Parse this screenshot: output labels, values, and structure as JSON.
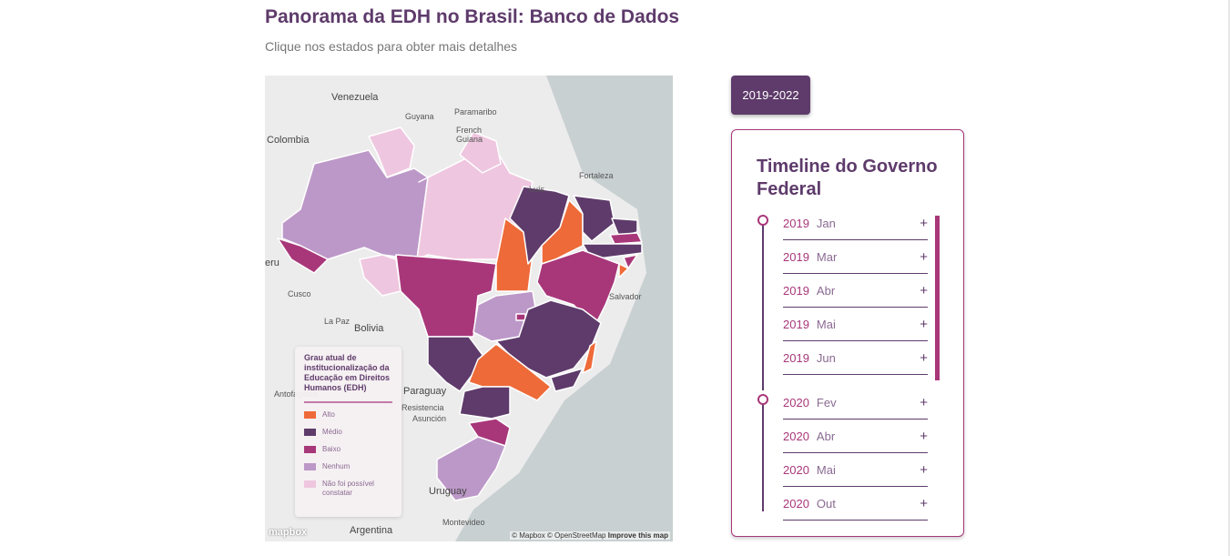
{
  "header": {
    "title": "Panorama da EDH no Brasil: Banco de Dados",
    "subtitle": "Clique nos estados para obter mais detalhes"
  },
  "map": {
    "labels": [
      "Venezuela",
      "Guyana",
      "Paramaribo",
      "French Guiana",
      "Colombia",
      "eru",
      "Bolivia",
      "La Paz",
      "Cusco",
      "Paraguay",
      "Resistencia",
      "Uruguay",
      "Montevideo",
      "Argentina",
      "Salvador",
      "Fortaleza",
      "Luís",
      "Asunción",
      "Antofagasta"
    ],
    "legend": {
      "title": "Grau atual de institucionalização da Educação em Direitos Humanos (EDH)",
      "items": [
        {
          "label": "Alto",
          "color": "#ee6a38"
        },
        {
          "label": "Médio",
          "color": "#5e3b6b"
        },
        {
          "label": "Baixo",
          "color": "#a8377a"
        },
        {
          "label": "Nenhum",
          "color": "#bc98c8"
        },
        {
          "label": "Não foi possível constatar",
          "color": "#efc6df"
        }
      ]
    },
    "attribution": "© Mapbox © OpenStreetMap",
    "improve": "Improve this map",
    "logo": "mapbox"
  },
  "period_button": "2019-2022",
  "timeline": {
    "title": "Timeline do Governo Federal",
    "items": [
      {
        "year": "2019",
        "month": "Jan"
      },
      {
        "year": "2019",
        "month": "Mar"
      },
      {
        "year": "2019",
        "month": "Abr"
      },
      {
        "year": "2019",
        "month": "Mai"
      },
      {
        "year": "2019",
        "month": "Jun"
      },
      {
        "year": "2020",
        "month": "Fev"
      },
      {
        "year": "2020",
        "month": "Abr"
      },
      {
        "year": "2020",
        "month": "Mai"
      },
      {
        "year": "2020",
        "month": "Out"
      }
    ],
    "expand": "+"
  }
}
